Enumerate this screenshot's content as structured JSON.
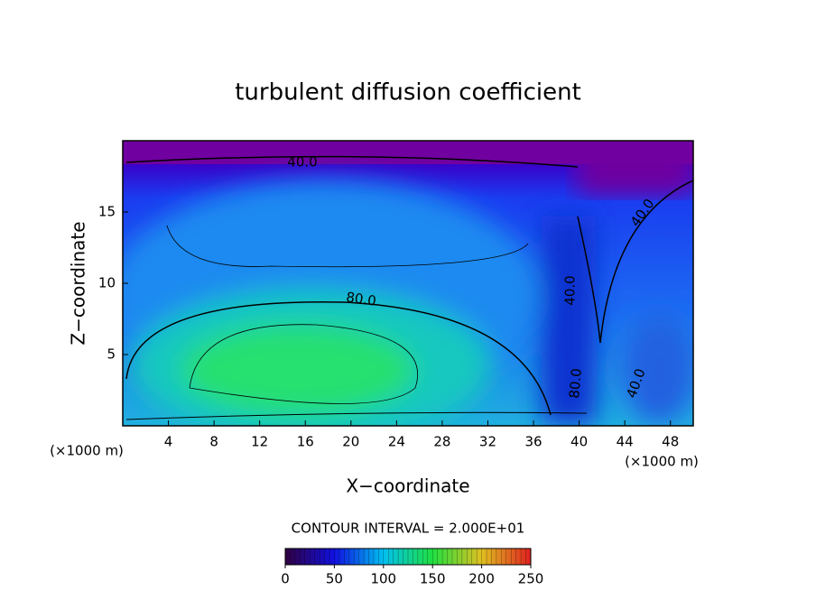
{
  "chart_data": {
    "type": "contour",
    "title": "turbulent diffusion coefficient",
    "xlabel": "X−coordinate",
    "ylabel": "Z−coordinate",
    "xunit": "(×1000 m)",
    "yunit": "(×1000 m)",
    "xlim": [
      0,
      50
    ],
    "xticks": [
      4,
      8,
      12,
      16,
      20,
      24,
      28,
      32,
      36,
      40,
      44,
      48
    ],
    "ylim": [
      0,
      20
    ],
    "yticks": [
      5,
      10,
      15
    ],
    "contour_labels": [
      "40.0",
      "40.0",
      "80.0",
      "40.0",
      "80.0",
      "40.0"
    ],
    "contour_interval": "CONTOUR INTERVAL = 2.000E+01",
    "colorbar": {
      "lim": [
        0,
        250
      ],
      "ticks": [
        0,
        50,
        100,
        150,
        200,
        250
      ]
    }
  }
}
